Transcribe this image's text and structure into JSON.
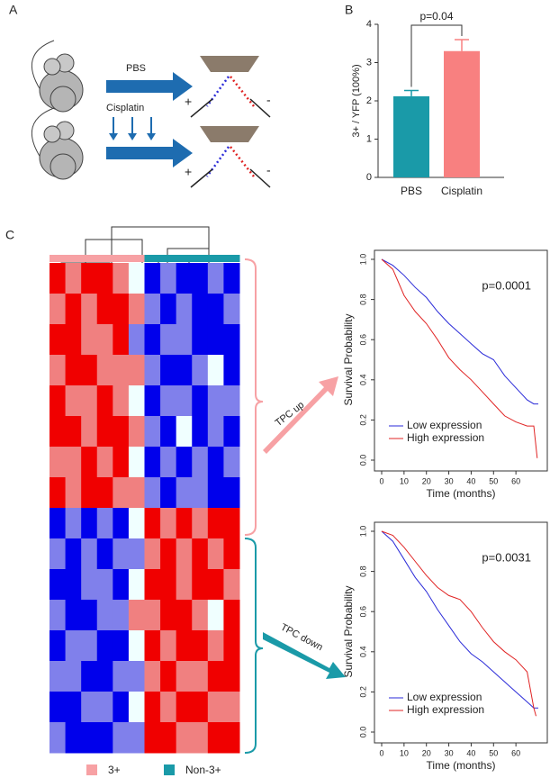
{
  "panel_labels": [
    "A",
    "B",
    "C"
  ],
  "schematic": {
    "treatments": [
      "PBS",
      "Cisplatin"
    ],
    "plus": "+",
    "minus": "-"
  },
  "chart_data": [
    {
      "type": "bar",
      "ylabel": "3+ / YFP (100%)",
      "categories": [
        "PBS",
        "Cisplatin"
      ],
      "values": [
        2.12,
        3.3
      ],
      "errors": [
        0.15,
        0.3
      ],
      "colors": [
        "#1a9aa8",
        "#f88080"
      ],
      "ylim": [
        0,
        4
      ],
      "yticks": [
        0,
        1,
        2,
        3,
        4
      ],
      "annotation": "p=0.04"
    },
    {
      "type": "heatmap",
      "groups": [
        "3+",
        "Non-3+"
      ],
      "group_colors": [
        "#f7a1a4",
        "#1a9aa8"
      ],
      "column_groups": [
        0,
        0,
        0,
        0,
        0,
        0,
        1,
        1,
        1,
        1,
        1,
        1
      ],
      "row_groups": [
        "TPC up",
        "TPC down"
      ],
      "matrix": [
        [
          2,
          1,
          2,
          2,
          1,
          0,
          -2,
          -1,
          -2,
          -2,
          -1,
          -2
        ],
        [
          1,
          2,
          1,
          2,
          2,
          1,
          -1,
          -2,
          -1,
          -2,
          -2,
          -1
        ],
        [
          2,
          2,
          1,
          1,
          2,
          -1,
          -2,
          -1,
          -1,
          -2,
          -2,
          -2
        ],
        [
          1,
          2,
          2,
          1,
          1,
          1,
          -1,
          -2,
          -2,
          -1,
          0,
          -2
        ],
        [
          2,
          1,
          1,
          2,
          1,
          0,
          -2,
          -1,
          -1,
          -2,
          -1,
          -1
        ],
        [
          2,
          2,
          1,
          2,
          2,
          1,
          -1,
          -2,
          0,
          -2,
          -1,
          -2
        ],
        [
          1,
          1,
          2,
          1,
          2,
          0,
          -2,
          -1,
          -2,
          -1,
          -2,
          -1
        ],
        [
          2,
          1,
          2,
          2,
          1,
          1,
          -1,
          -2,
          -1,
          -1,
          -2,
          -2
        ],
        [
          -2,
          -1,
          -2,
          -1,
          -2,
          0,
          2,
          1,
          2,
          1,
          2,
          2
        ],
        [
          -1,
          -2,
          -1,
          -2,
          -1,
          -1,
          1,
          2,
          1,
          2,
          1,
          2
        ],
        [
          -2,
          -2,
          -1,
          -1,
          -2,
          0,
          2,
          2,
          1,
          2,
          2,
          1
        ],
        [
          -1,
          -2,
          -2,
          -1,
          -1,
          1,
          1,
          2,
          2,
          1,
          0,
          2
        ],
        [
          -2,
          -1,
          -1,
          -2,
          -2,
          0,
          2,
          1,
          2,
          2,
          1,
          2
        ],
        [
          -1,
          -1,
          -2,
          -2,
          -1,
          -1,
          1,
          2,
          1,
          1,
          2,
          2
        ],
        [
          -2,
          -2,
          -1,
          -1,
          -2,
          0,
          2,
          1,
          2,
          2,
          1,
          1
        ],
        [
          -1,
          -2,
          -2,
          -2,
          -1,
          -1,
          2,
          2,
          1,
          1,
          2,
          2
        ]
      ]
    },
    {
      "type": "line",
      "xlabel": "Time (months)",
      "ylabel": "Survival Probability",
      "annotation": "p=0.0001",
      "legend": "lower left",
      "xlim": [
        0,
        70
      ],
      "xticks": [
        0,
        10,
        20,
        30,
        40,
        50,
        60
      ],
      "ylim": [
        0,
        1
      ],
      "yticks": [
        {
          "value": 0,
          "label": "0.0"
        },
        {
          "value": 0.2,
          "label": "0.2"
        },
        {
          "value": 0.4,
          "label": "0.4"
        },
        {
          "value": 0.6,
          "label": "0.6"
        },
        {
          "value": 0.8,
          "label": "0.8"
        },
        {
          "value": 1,
          "label": "1.0"
        }
      ],
      "series": [
        {
          "name": "Low expression",
          "color": "#2a2ad8",
          "x": [
            0,
            5,
            10,
            15,
            20,
            25,
            30,
            35,
            40,
            45,
            50,
            55,
            60,
            65,
            68,
            70
          ],
          "values": [
            1,
            0.97,
            0.92,
            0.86,
            0.81,
            0.74,
            0.68,
            0.63,
            0.58,
            0.53,
            0.5,
            0.42,
            0.36,
            0.3,
            0.28,
            0.28
          ]
        },
        {
          "name": "High expression",
          "color": "#e02424",
          "x": [
            0,
            5,
            10,
            15,
            20,
            25,
            30,
            35,
            40,
            45,
            50,
            55,
            60,
            65,
            68,
            69.5
          ],
          "values": [
            1,
            0.95,
            0.82,
            0.74,
            0.68,
            0.6,
            0.51,
            0.45,
            0.4,
            0.34,
            0.28,
            0.22,
            0.19,
            0.17,
            0.17,
            0.01
          ]
        }
      ]
    },
    {
      "type": "line",
      "xlabel": "Time (months)",
      "ylabel": "Survival Probability",
      "annotation": "p=0.0031",
      "legend": "lower left",
      "xlim": [
        0,
        70
      ],
      "xticks": [
        0,
        10,
        20,
        30,
        40,
        50,
        60
      ],
      "ylim": [
        0,
        1
      ],
      "yticks": [
        {
          "value": 0,
          "label": "0.0"
        },
        {
          "value": 0.2,
          "label": "0.2"
        },
        {
          "value": 0.4,
          "label": "0.4"
        },
        {
          "value": 0.6,
          "label": "0.6"
        },
        {
          "value": 0.8,
          "label": "0.8"
        },
        {
          "value": 1,
          "label": "1.0"
        }
      ],
      "series": [
        {
          "name": "Low expression",
          "color": "#2a2ad8",
          "x": [
            0,
            5,
            10,
            15,
            20,
            25,
            30,
            35,
            40,
            45,
            50,
            55,
            60,
            65,
            68,
            70
          ],
          "values": [
            1,
            0.95,
            0.86,
            0.77,
            0.7,
            0.61,
            0.53,
            0.45,
            0.39,
            0.35,
            0.3,
            0.25,
            0.2,
            0.15,
            0.12,
            0.12
          ]
        },
        {
          "name": "High expression",
          "color": "#e02424",
          "x": [
            0,
            5,
            10,
            15,
            20,
            25,
            30,
            35,
            40,
            45,
            50,
            55,
            60,
            65,
            68,
            69
          ],
          "values": [
            1,
            0.98,
            0.92,
            0.85,
            0.78,
            0.72,
            0.68,
            0.66,
            0.6,
            0.52,
            0.45,
            0.4,
            0.36,
            0.3,
            0.12,
            0.08
          ]
        }
      ]
    }
  ]
}
